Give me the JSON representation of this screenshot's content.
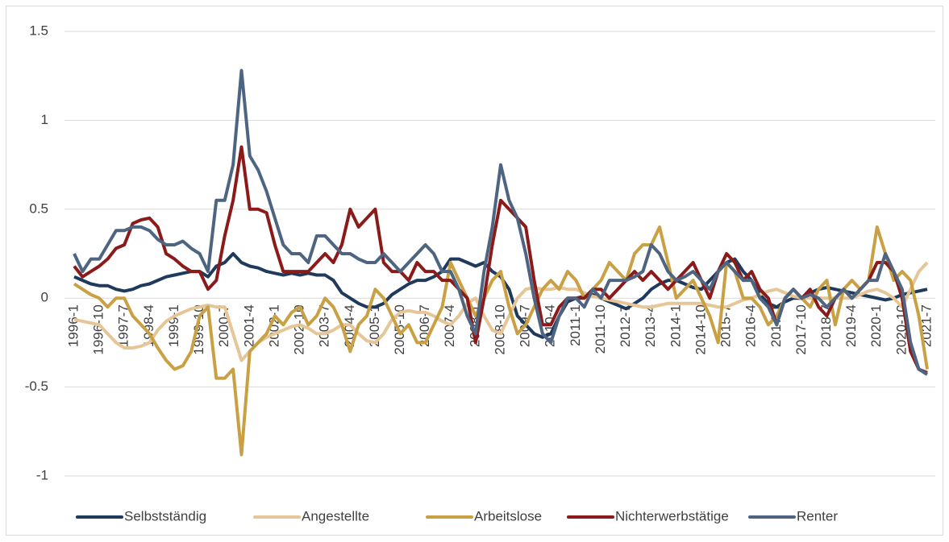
{
  "chart_data": {
    "type": "line",
    "categories": [
      "1996-1",
      null,
      null,
      "1996-10",
      null,
      null,
      "1997-7",
      null,
      null,
      "1998-4",
      null,
      null,
      "1999-1",
      null,
      null,
      "1999-10",
      null,
      null,
      "2000-7",
      null,
      null,
      "2001-4",
      null,
      null,
      "2002-1",
      null,
      null,
      "2002-10",
      null,
      null,
      "2003-7",
      null,
      null,
      "2004-4",
      null,
      null,
      "2005-1",
      null,
      null,
      "2005-10",
      null,
      null,
      "2006-7",
      null,
      null,
      "2007-4",
      null,
      null,
      "2008-1",
      null,
      null,
      "2008-10",
      null,
      null,
      "2009-7",
      null,
      null,
      "2010-4",
      null,
      null,
      "2011-1",
      null,
      null,
      "2011-10",
      null,
      null,
      "2012-7",
      null,
      null,
      "2013-4",
      null,
      null,
      "2014-1",
      null,
      null,
      "2014-10",
      null,
      null,
      "2015-7",
      null,
      null,
      "2016-4",
      null,
      null,
      "2017-1",
      null,
      null,
      "2017-10",
      null,
      null,
      "2018-7",
      null,
      null,
      "2019-4",
      null,
      null,
      "2020-1",
      null,
      null,
      "2020-10",
      null,
      null,
      "2021-7"
    ],
    "series": [
      {
        "name": "Selbstständig",
        "color": "#1f3a5c",
        "values": [
          0.12,
          0.1,
          0.08,
          0.07,
          0.07,
          0.05,
          0.04,
          0.05,
          0.07,
          0.08,
          0.1,
          0.12,
          0.13,
          0.14,
          0.15,
          0.15,
          0.12,
          0.18,
          0.2,
          0.25,
          0.2,
          0.18,
          0.17,
          0.15,
          0.14,
          0.13,
          0.14,
          0.13,
          0.14,
          0.13,
          0.13,
          0.1,
          0.03,
          0.0,
          -0.03,
          -0.05,
          -0.05,
          -0.03,
          0.02,
          0.05,
          0.08,
          0.1,
          0.1,
          0.12,
          0.15,
          0.22,
          0.22,
          0.2,
          0.18,
          0.2,
          0.15,
          0.12,
          0.05,
          -0.1,
          -0.15,
          -0.2,
          -0.22,
          -0.2,
          -0.1,
          -0.02,
          0.0,
          0.01,
          0.02,
          0.0,
          -0.02,
          -0.04,
          -0.06,
          -0.03,
          0.0,
          0.05,
          0.08,
          0.1,
          0.1,
          0.08,
          0.06,
          0.05,
          0.1,
          0.15,
          0.2,
          0.22,
          0.15,
          0.1,
          0.02,
          -0.03,
          -0.05,
          -0.02,
          0.0,
          0.0,
          0.03,
          0.05,
          0.06,
          0.05,
          0.04,
          0.03,
          0.02,
          0.01,
          0.0,
          -0.01,
          0.0,
          0.02,
          0.03,
          0.04,
          0.05
        ]
      },
      {
        "name": "Angestellte",
        "color": "#e6c697",
        "values": [
          -0.12,
          -0.13,
          -0.14,
          -0.15,
          -0.2,
          -0.25,
          -0.28,
          -0.28,
          -0.27,
          -0.25,
          -0.18,
          -0.13,
          -0.1,
          -0.08,
          -0.06,
          -0.05,
          -0.04,
          -0.05,
          -0.05,
          -0.2,
          -0.35,
          -0.3,
          -0.25,
          -0.22,
          -0.2,
          -0.18,
          -0.16,
          -0.15,
          -0.17,
          -0.2,
          -0.2,
          -0.18,
          -0.15,
          -0.15,
          -0.2,
          -0.24,
          -0.25,
          -0.2,
          -0.12,
          -0.08,
          -0.07,
          -0.08,
          -0.08,
          -0.1,
          -0.13,
          -0.15,
          -0.1,
          -0.03,
          0.0,
          -0.1,
          -0.18,
          -0.2,
          -0.1,
          0.0,
          0.05,
          0.06,
          0.05,
          0.05,
          0.06,
          0.05,
          0.05,
          0.03,
          0.01,
          0.0,
          -0.01,
          -0.02,
          -0.03,
          -0.04,
          -0.05,
          -0.05,
          -0.04,
          -0.03,
          -0.03,
          -0.03,
          -0.03,
          -0.03,
          -0.04,
          -0.05,
          -0.05,
          -0.03,
          -0.01,
          0.0,
          0.02,
          0.04,
          0.05,
          0.03,
          0.01,
          0.0,
          0.0,
          0.0,
          0.0,
          0.0,
          0.0,
          0.0,
          0.02,
          0.04,
          0.05,
          0.03,
          0.0,
          -0.05,
          0.05,
          0.15,
          0.2
        ]
      },
      {
        "name": "Arbeitslose",
        "color": "#c9a043",
        "values": [
          0.08,
          0.05,
          0.02,
          0.0,
          -0.05,
          0.0,
          0.0,
          -0.1,
          -0.15,
          -0.2,
          -0.28,
          -0.35,
          -0.4,
          -0.38,
          -0.3,
          -0.1,
          -0.05,
          -0.45,
          -0.45,
          -0.4,
          -0.88,
          -0.3,
          -0.25,
          -0.2,
          -0.1,
          -0.15,
          -0.08,
          -0.05,
          -0.15,
          -0.1,
          0.0,
          -0.05,
          -0.15,
          -0.3,
          -0.15,
          -0.1,
          0.05,
          0.0,
          -0.1,
          -0.2,
          -0.15,
          -0.25,
          -0.25,
          -0.15,
          -0.05,
          0.2,
          0.1,
          0.0,
          -0.1,
          0.0,
          0.1,
          0.15,
          -0.05,
          -0.2,
          -0.15,
          -0.05,
          0.05,
          0.1,
          0.05,
          0.15,
          0.1,
          0.0,
          0.05,
          0.1,
          0.2,
          0.15,
          0.1,
          0.25,
          0.3,
          0.3,
          0.4,
          0.2,
          0.0,
          0.05,
          0.1,
          0.0,
          -0.1,
          -0.25,
          0.2,
          0.15,
          0.0,
          0.0,
          -0.05,
          -0.15,
          -0.1,
          0.0,
          0.05,
          0.0,
          -0.05,
          0.05,
          0.1,
          -0.15,
          0.05,
          0.1,
          0.05,
          0.1,
          0.4,
          0.25,
          0.1,
          0.15,
          0.1,
          -0.1,
          -0.4
        ]
      },
      {
        "name": "Nichterwerbstätige",
        "color": "#8b1a1a",
        "values": [
          0.18,
          0.12,
          0.15,
          0.18,
          0.22,
          0.28,
          0.3,
          0.42,
          0.44,
          0.45,
          0.4,
          0.25,
          0.22,
          0.18,
          0.15,
          0.15,
          0.05,
          0.1,
          0.35,
          0.55,
          0.85,
          0.5,
          0.5,
          0.48,
          0.3,
          0.15,
          0.15,
          0.15,
          0.15,
          0.2,
          0.25,
          0.2,
          0.3,
          0.5,
          0.4,
          0.45,
          0.5,
          0.2,
          0.15,
          0.15,
          0.1,
          0.2,
          0.15,
          0.15,
          0.1,
          0.1,
          0.05,
          0.0,
          -0.25,
          0.0,
          0.3,
          0.55,
          0.5,
          0.45,
          0.4,
          0.1,
          -0.15,
          -0.15,
          -0.05,
          0.0,
          0.0,
          0.0,
          0.05,
          0.05,
          0.0,
          0.05,
          0.1,
          0.15,
          0.1,
          0.15,
          0.1,
          0.05,
          0.1,
          0.15,
          0.2,
          0.1,
          0.0,
          0.15,
          0.25,
          0.2,
          0.1,
          0.15,
          0.05,
          0.0,
          -0.15,
          0.0,
          0.05,
          0.0,
          0.05,
          -0.05,
          -0.1,
          0.0,
          0.05,
          0.0,
          0.05,
          0.1,
          0.2,
          0.2,
          0.15,
          0.0,
          -0.3,
          -0.4,
          -0.42
        ]
      },
      {
        "name": "Renter",
        "color": "#4e6582",
        "values": [
          0.25,
          0.15,
          0.22,
          0.22,
          0.3,
          0.38,
          0.38,
          0.4,
          0.4,
          0.38,
          0.33,
          0.3,
          0.3,
          0.32,
          0.28,
          0.25,
          0.15,
          0.55,
          0.55,
          0.75,
          1.28,
          0.8,
          0.72,
          0.6,
          0.45,
          0.3,
          0.25,
          0.25,
          0.2,
          0.35,
          0.35,
          0.3,
          0.25,
          0.25,
          0.22,
          0.2,
          0.2,
          0.25,
          0.2,
          0.15,
          0.2,
          0.25,
          0.3,
          0.25,
          0.15,
          0.15,
          0.05,
          -0.1,
          -0.2,
          0.15,
          0.4,
          0.75,
          0.55,
          0.45,
          0.25,
          0.0,
          -0.2,
          -0.25,
          -0.1,
          0.0,
          0.0,
          -0.05,
          0.05,
          0.0,
          0.1,
          0.1,
          0.1,
          0.12,
          0.15,
          0.3,
          0.25,
          0.15,
          0.1,
          0.12,
          0.15,
          0.1,
          0.05,
          0.15,
          0.2,
          0.15,
          0.1,
          0.1,
          0.0,
          -0.05,
          -0.15,
          0.0,
          0.05,
          0.0,
          0.02,
          0.0,
          -0.05,
          0.0,
          0.05,
          0.0,
          0.05,
          0.1,
          0.1,
          0.25,
          0.15,
          0.05,
          -0.25,
          -0.4,
          -0.43
        ]
      }
    ],
    "ylim": [
      -1,
      1.5
    ],
    "yticks": [
      -1,
      -0.5,
      0,
      0.5,
      1,
      1.5
    ],
    "grid": true,
    "legend": "bottom"
  }
}
